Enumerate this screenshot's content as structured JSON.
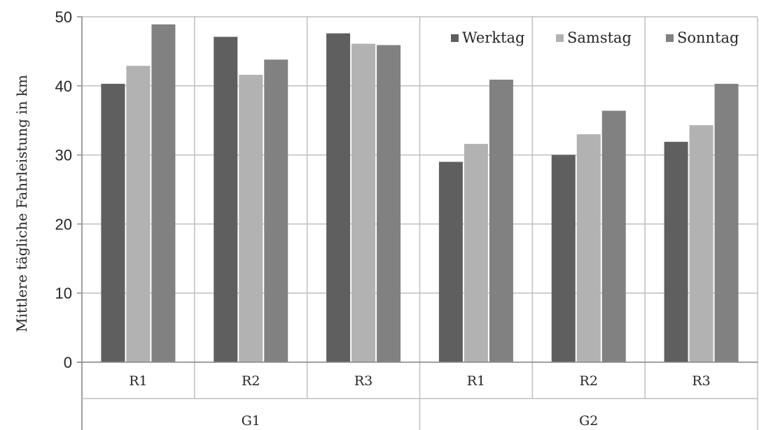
{
  "chart_data": {
    "type": "bar",
    "title": "",
    "ylabel": "Mittlere  tägliche Fahrleistung in km",
    "xlabel": "",
    "ylim": [
      0,
      50
    ],
    "yticks": [
      "0",
      "10",
      "20",
      "30",
      "40",
      "50"
    ],
    "grid": true,
    "legend_position": "top-right",
    "categories": [
      "R1",
      "R2",
      "R3",
      "R1",
      "R2",
      "R3"
    ],
    "groups": [
      "G1",
      "G2"
    ],
    "series": [
      {
        "name": "Werktag",
        "color": "#5f5f5f",
        "values": [
          40.3,
          47.1,
          47.6,
          29.0,
          30.0,
          31.9
        ]
      },
      {
        "name": "Samstag",
        "color": "#b2b2b2",
        "values": [
          42.9,
          41.6,
          46.1,
          31.6,
          33.0,
          34.3
        ]
      },
      {
        "name": "Sonntag",
        "color": "#818181",
        "values": [
          48.9,
          43.8,
          45.9,
          40.9,
          36.4,
          40.3
        ]
      }
    ]
  }
}
